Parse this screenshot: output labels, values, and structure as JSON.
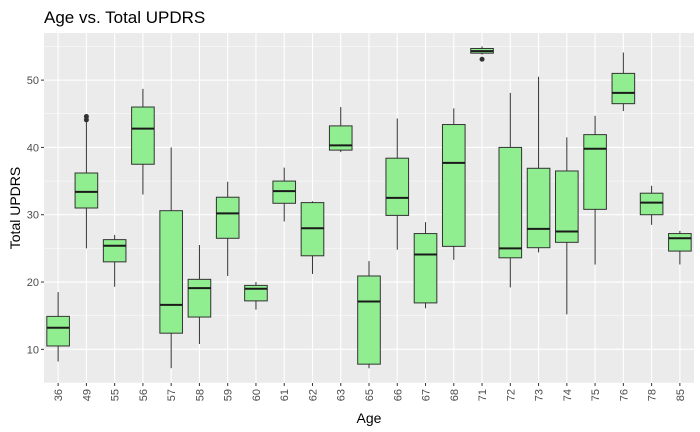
{
  "chart_data": {
    "type": "boxplot",
    "title": "Age vs. Total UPDRS",
    "xlabel": "Age",
    "ylabel": "Total UPDRS",
    "ylim": [
      5,
      57
    ],
    "yticks": [
      10,
      20,
      30,
      40,
      50
    ],
    "grid": true,
    "colors": {
      "panel_bg": "#ebebeb",
      "grid_major": "#ffffff",
      "box_fill": "#90ee90",
      "box_stroke": "#333333",
      "median": "#1a1a1a",
      "outlier": "#333333"
    },
    "categories": [
      "36",
      "49",
      "55",
      "56",
      "57",
      "58",
      "59",
      "60",
      "61",
      "62",
      "63",
      "65",
      "66",
      "67",
      "68",
      "71",
      "72",
      "73",
      "74",
      "75",
      "76",
      "78",
      "85"
    ],
    "boxes": [
      {
        "x": "36",
        "min": 8.2,
        "q1": 10.5,
        "median": 13.2,
        "q3": 14.9,
        "max": 18.5,
        "outliers": []
      },
      {
        "x": "49",
        "min": 25.0,
        "q1": 31.0,
        "median": 33.4,
        "q3": 36.2,
        "max": 43.8,
        "outliers": [
          44.1,
          44.6
        ]
      },
      {
        "x": "55",
        "min": 19.3,
        "q1": 23.0,
        "median": 25.4,
        "q3": 26.3,
        "max": 27.0,
        "outliers": []
      },
      {
        "x": "56",
        "min": 33.0,
        "q1": 37.5,
        "median": 42.8,
        "q3": 46.0,
        "max": 48.7,
        "outliers": []
      },
      {
        "x": "57",
        "min": 7.2,
        "q1": 12.4,
        "median": 16.6,
        "q3": 30.6,
        "max": 40.0,
        "outliers": []
      },
      {
        "x": "58",
        "min": 10.8,
        "q1": 14.8,
        "median": 19.1,
        "q3": 20.4,
        "max": 25.5,
        "outliers": []
      },
      {
        "x": "59",
        "min": 20.9,
        "q1": 26.5,
        "median": 30.2,
        "q3": 32.6,
        "max": 34.9,
        "outliers": []
      },
      {
        "x": "60",
        "min": 15.9,
        "q1": 17.2,
        "median": 19.0,
        "q3": 19.5,
        "max": 20.0,
        "outliers": []
      },
      {
        "x": "61",
        "min": 29.0,
        "q1": 31.7,
        "median": 33.5,
        "q3": 35.0,
        "max": 37.0,
        "outliers": []
      },
      {
        "x": "62",
        "min": 21.2,
        "q1": 23.9,
        "median": 28.0,
        "q3": 31.8,
        "max": 32.0,
        "outliers": []
      },
      {
        "x": "63",
        "min": 39.3,
        "q1": 39.6,
        "median": 40.3,
        "q3": 43.2,
        "max": 46.0,
        "outliers": []
      },
      {
        "x": "65",
        "min": 7.2,
        "q1": 7.8,
        "median": 17.1,
        "q3": 20.9,
        "max": 23.1,
        "outliers": []
      },
      {
        "x": "66",
        "min": 24.8,
        "q1": 29.9,
        "median": 32.5,
        "q3": 38.4,
        "max": 44.3,
        "outliers": []
      },
      {
        "x": "67",
        "min": 16.1,
        "q1": 16.9,
        "median": 24.1,
        "q3": 27.2,
        "max": 28.9,
        "outliers": []
      },
      {
        "x": "68",
        "min": 23.3,
        "q1": 25.3,
        "median": 37.7,
        "q3": 43.4,
        "max": 45.8,
        "outliers": []
      },
      {
        "x": "71",
        "min": 53.8,
        "q1": 54.0,
        "median": 54.3,
        "q3": 54.7,
        "max": 55.0,
        "outliers": [
          53.1
        ]
      },
      {
        "x": "72",
        "min": 19.2,
        "q1": 23.6,
        "median": 25.0,
        "q3": 40.0,
        "max": 48.1,
        "outliers": []
      },
      {
        "x": "73",
        "min": 24.4,
        "q1": 25.1,
        "median": 27.9,
        "q3": 36.9,
        "max": 50.5,
        "outliers": []
      },
      {
        "x": "74",
        "min": 15.2,
        "q1": 25.9,
        "median": 27.5,
        "q3": 36.5,
        "max": 41.5,
        "outliers": []
      },
      {
        "x": "75",
        "min": 22.6,
        "q1": 30.8,
        "median": 39.8,
        "q3": 41.9,
        "max": 44.7,
        "outliers": []
      },
      {
        "x": "76",
        "min": 45.4,
        "q1": 46.5,
        "median": 48.1,
        "q3": 51.0,
        "max": 54.1,
        "outliers": []
      },
      {
        "x": "78",
        "min": 28.5,
        "q1": 30.0,
        "median": 31.8,
        "q3": 33.2,
        "max": 34.3,
        "outliers": []
      },
      {
        "x": "85",
        "min": 22.6,
        "q1": 24.6,
        "median": 26.5,
        "q3": 27.2,
        "max": 27.6,
        "outliers": []
      }
    ]
  }
}
